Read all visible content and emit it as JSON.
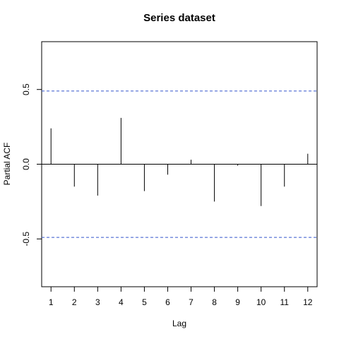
{
  "chart_data": {
    "type": "bar",
    "title": "Series  dataset",
    "xlabel": "Lag",
    "ylabel": "Partial ACF",
    "x": [
      1,
      2,
      3,
      4,
      5,
      6,
      7,
      8,
      9,
      10,
      11,
      12
    ],
    "values": [
      0.24,
      -0.15,
      -0.21,
      0.31,
      -0.18,
      -0.07,
      0.03,
      -0.25,
      -0.01,
      -0.28,
      -0.15,
      0.07
    ],
    "xlim": [
      0.6,
      12.4
    ],
    "ylim": [
      -0.82,
      0.82
    ],
    "x_ticks": [
      "1",
      "2",
      "3",
      "4",
      "5",
      "6",
      "7",
      "8",
      "9",
      "10",
      "11",
      "12"
    ],
    "y_ticks": [
      "-0.5",
      "0.0",
      "0.5"
    ],
    "confidence_bound": 0.49,
    "colors": {
      "bars": "#000000",
      "bounds": "#3355cc",
      "zero_line": "#000000"
    }
  }
}
